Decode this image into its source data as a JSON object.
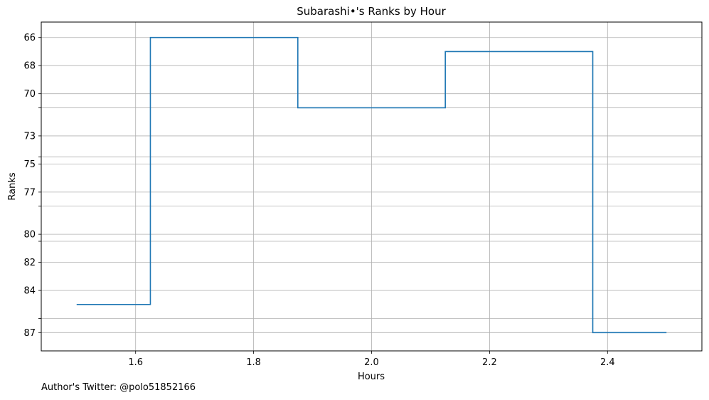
{
  "chart_data": {
    "type": "line",
    "drawstyle": "steps-mid",
    "title": "Subarashi•'s Ranks by Hour",
    "xlabel": "Hours",
    "ylabel": "Ranks",
    "x": [
      1.5,
      1.75,
      2.0,
      2.25,
      2.5
    ],
    "series": [
      {
        "values": [
          85,
          66,
          71,
          67,
          87
        ],
        "color": "#1f77b4"
      }
    ],
    "xlim": [
      1.44,
      2.56
    ],
    "ylim": [
      88.3,
      64.9
    ],
    "xticks": [
      1.6,
      1.8,
      2.0,
      2.2,
      2.4
    ],
    "xtick_labels": [
      "1.6",
      "1.8",
      "2.0",
      "2.2",
      "2.4"
    ],
    "yticks": [
      66,
      68,
      70,
      71,
      73,
      74.5,
      75,
      77,
      78,
      80,
      80.5,
      82,
      84,
      86,
      87
    ],
    "ytick_labels": [
      "66",
      "68",
      "70",
      "",
      "73",
      "",
      "75",
      "77",
      "",
      "80",
      "",
      "82",
      "84",
      "",
      "87"
    ],
    "y_inverted": true,
    "grid": true
  },
  "footer": {
    "note": "Author's Twitter: @polo51852166"
  }
}
